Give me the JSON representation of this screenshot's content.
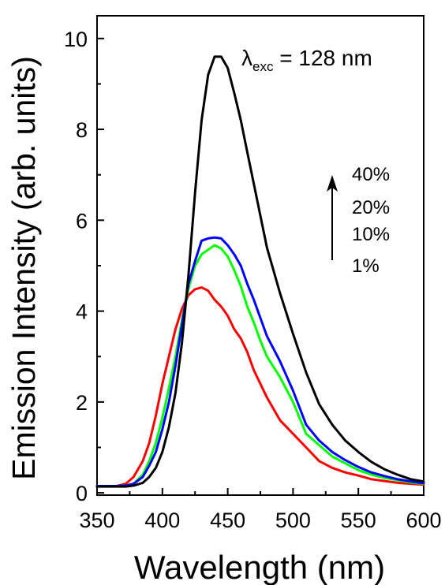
{
  "chart_data": {
    "type": "line",
    "xlabel": "Wavelength (nm)",
    "ylabel": "Emission Intensity (arb. units)",
    "xlim": [
      350,
      600
    ],
    "ylim": [
      -0.05,
      10.5
    ],
    "xticks": [
      350,
      400,
      450,
      500,
      550,
      600
    ],
    "yticks": [
      0,
      2,
      4,
      6,
      8,
      10
    ],
    "grid": false,
    "legend": "none",
    "annotation": {
      "lambda": "λ",
      "subscript": "exc",
      "text": " = 128 nm"
    },
    "concentration_labels": [
      "40%",
      "20%",
      "10%",
      "1%"
    ],
    "series": [
      {
        "label": "1%",
        "color": "#ff0000",
        "x": [
          350,
          365,
          372,
          378,
          385,
          390,
          395,
          400,
          405,
          410,
          415,
          420,
          425,
          430,
          435,
          440,
          445,
          450,
          455,
          460,
          465,
          470,
          475,
          480,
          490,
          500,
          510,
          520,
          530,
          540,
          550,
          560,
          570,
          580,
          590,
          600
        ],
        "y": [
          0.15,
          0.15,
          0.2,
          0.35,
          0.7,
          1.1,
          1.7,
          2.4,
          3.0,
          3.6,
          4.05,
          4.35,
          4.48,
          4.52,
          4.45,
          4.25,
          4.1,
          3.9,
          3.6,
          3.4,
          3.1,
          2.7,
          2.4,
          2.1,
          1.6,
          1.3,
          1.0,
          0.7,
          0.55,
          0.45,
          0.38,
          0.3,
          0.26,
          0.22,
          0.2,
          0.18
        ]
      },
      {
        "label": "10%",
        "color": "#00ff00",
        "x": [
          350,
          365,
          372,
          378,
          385,
          390,
          395,
          400,
          405,
          410,
          415,
          420,
          425,
          430,
          435,
          440,
          445,
          450,
          455,
          460,
          465,
          470,
          475,
          480,
          490,
          500,
          510,
          520,
          530,
          540,
          550,
          560,
          570,
          580,
          590,
          600
        ],
        "y": [
          0.15,
          0.15,
          0.16,
          0.2,
          0.4,
          0.7,
          1.1,
          1.65,
          2.3,
          3.0,
          3.8,
          4.5,
          5.0,
          5.25,
          5.35,
          5.45,
          5.38,
          5.2,
          4.9,
          4.55,
          4.1,
          3.75,
          3.35,
          3.0,
          2.55,
          2.0,
          1.3,
          1.05,
          0.8,
          0.65,
          0.5,
          0.4,
          0.33,
          0.28,
          0.23,
          0.2
        ]
      },
      {
        "label": "20%",
        "color": "#0000ff",
        "x": [
          350,
          365,
          372,
          378,
          385,
          390,
          395,
          400,
          405,
          410,
          415,
          420,
          425,
          430,
          435,
          440,
          445,
          450,
          455,
          460,
          465,
          470,
          475,
          480,
          490,
          500,
          510,
          520,
          530,
          540,
          550,
          560,
          570,
          580,
          590,
          600
        ],
        "y": [
          0.15,
          0.15,
          0.16,
          0.2,
          0.35,
          0.6,
          0.9,
          1.4,
          2.0,
          2.8,
          3.7,
          4.6,
          5.1,
          5.55,
          5.6,
          5.62,
          5.6,
          5.45,
          5.25,
          5.0,
          4.6,
          4.25,
          3.85,
          3.45,
          2.9,
          2.25,
          1.5,
          1.15,
          0.9,
          0.72,
          0.57,
          0.45,
          0.37,
          0.3,
          0.25,
          0.21
        ]
      },
      {
        "label": "40%",
        "color": "#000000",
        "x": [
          350,
          365,
          372,
          378,
          385,
          390,
          395,
          400,
          405,
          410,
          415,
          420,
          425,
          430,
          435,
          440,
          445,
          450,
          455,
          460,
          465,
          470,
          475,
          480,
          490,
          500,
          510,
          520,
          530,
          540,
          550,
          560,
          570,
          580,
          590,
          600
        ],
        "y": [
          0.14,
          0.14,
          0.14,
          0.16,
          0.22,
          0.35,
          0.55,
          0.9,
          1.45,
          2.2,
          3.3,
          4.8,
          6.6,
          8.2,
          9.2,
          9.6,
          9.6,
          9.35,
          8.8,
          8.2,
          7.5,
          6.8,
          6.1,
          5.4,
          4.4,
          3.5,
          2.65,
          1.95,
          1.5,
          1.15,
          0.9,
          0.68,
          0.52,
          0.4,
          0.3,
          0.25
        ]
      }
    ]
  }
}
